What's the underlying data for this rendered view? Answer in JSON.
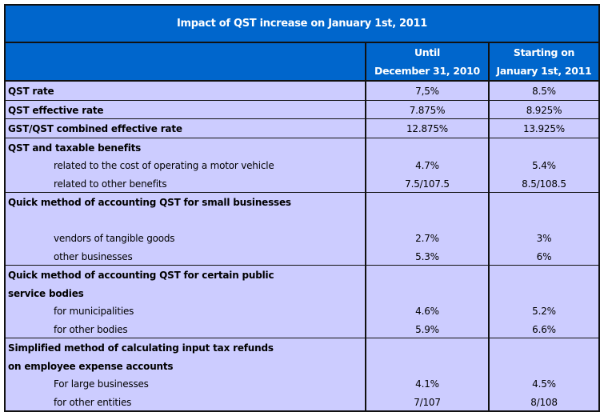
{
  "title": "Impact of QST increase on January 1st, 2011",
  "headers": {
    "until": [
      "Until",
      "December 31, 2010"
    ],
    "starting": [
      "Starting on",
      "January 1st, 2011"
    ]
  },
  "groups": [
    {
      "lines": [
        {
          "label": "QST rate",
          "bold": true,
          "until": "7,5%",
          "starting": "8.5%"
        }
      ]
    },
    {
      "lines": [
        {
          "label": "QST effective rate",
          "bold": true,
          "until": "7.875%",
          "starting": "8.925%"
        }
      ]
    },
    {
      "lines": [
        {
          "label": "GST/QST combined effective rate",
          "bold": true,
          "until": "12.875%",
          "starting": "13.925%"
        }
      ]
    },
    {
      "lines": [
        {
          "label": "QST and taxable benefits",
          "bold": true,
          "until": "",
          "starting": ""
        },
        {
          "label": "related to the cost of operating a motor vehicle",
          "indent": true,
          "until": "4.7%",
          "starting": "5.4%"
        },
        {
          "label": "related to other benefits",
          "indent": true,
          "until": "7.5/107.5",
          "starting": "8.5/108.5"
        }
      ]
    },
    {
      "lines": [
        {
          "label": "Quick method of accounting QST for small businesses",
          "bold": true,
          "until": "",
          "starting": ""
        },
        {
          "label": "",
          "until": "",
          "starting": ""
        },
        {
          "label": "vendors of tangible goods",
          "indent": true,
          "until": "2.7%",
          "starting": "3%"
        },
        {
          "label": "other businesses",
          "indent": true,
          "until": "5.3%",
          "starting": "6%"
        }
      ]
    },
    {
      "lines": [
        {
          "label": "Quick method of accounting QST for certain public",
          "bold": true,
          "until": "",
          "starting": ""
        },
        {
          "label": "service bodies",
          "bold": true,
          "until": "",
          "starting": ""
        },
        {
          "label": "for municipalities",
          "indent": true,
          "until": "4.6%",
          "starting": "5.2%"
        },
        {
          "label": "for other bodies",
          "indent": true,
          "until": "5.9%",
          "starting": "6.6%"
        }
      ]
    },
    {
      "lines": [
        {
          "label": "Simplified method of calculating input tax refunds",
          "bold": true,
          "until": "",
          "starting": ""
        },
        {
          "label": "on employee expense accounts",
          "bold": true,
          "until": "",
          "starting": ""
        },
        {
          "label": "For large businesses",
          "indent": true,
          "until": "4.1%",
          "starting": "4.5%"
        },
        {
          "label": "for other entities",
          "indent": true,
          "until": "7/107",
          "starting": "8/108"
        }
      ]
    }
  ]
}
